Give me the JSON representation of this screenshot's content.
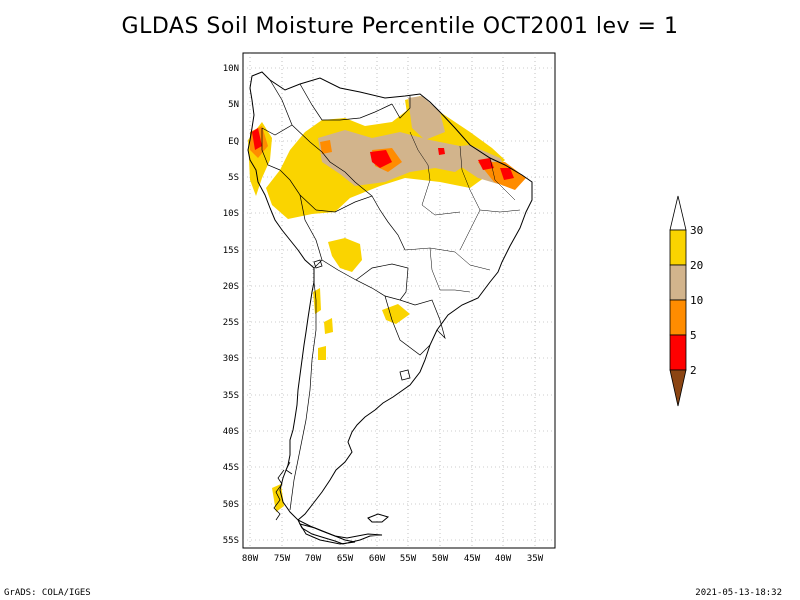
{
  "title": "GLDAS Soil Moisture Percentile OCT2001 lev = 1",
  "footer": {
    "left": "GrADS: COLA/IGES",
    "right": "2021-05-13-18:32"
  },
  "map": {
    "region": "South America",
    "lat_range": [
      -56,
      11
    ],
    "lon_range": [
      -81,
      -32
    ],
    "lat_ticks": [
      "10N",
      "5N",
      "EQ",
      "5S",
      "10S",
      "15S",
      "20S",
      "25S",
      "30S",
      "35S",
      "40S",
      "45S",
      "50S",
      "55S"
    ],
    "lon_ticks": [
      "80W",
      "75W",
      "70W",
      "65W",
      "60W",
      "55W",
      "50W",
      "45W",
      "40W",
      "35W"
    ],
    "grid": "dotted"
  },
  "legend": {
    "labels": [
      "30",
      "20",
      "10",
      "5",
      "2"
    ],
    "colors": {
      "above_30": "#ffffff",
      "20_30": "#fad400",
      "10_20": "#d2b48c",
      "5_10": "#ff8c00",
      "2_5": "#ff0000",
      "below_2": "#8b4513"
    }
  }
}
